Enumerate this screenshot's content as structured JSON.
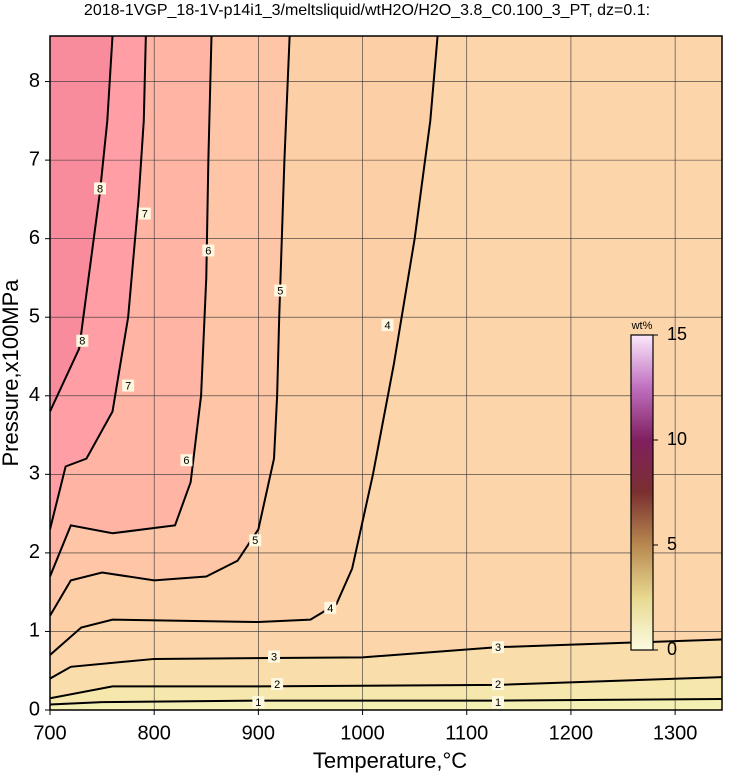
{
  "chart_data": {
    "type": "contour",
    "title": "2018-1VGP_18-1V-p14i1_3/meltsliquid/wtH2O/H2O_3.8_C0.100_3_PT, dz=0.1:",
    "xlabel": "Temperature,°C",
    "ylabel": "Pressure,x100MPa",
    "xlim": [
      700,
      1345
    ],
    "ylim": [
      0,
      8.58
    ],
    "xticks": [
      700,
      800,
      900,
      1000,
      1100,
      1200,
      1300
    ],
    "yticks": [
      0,
      1,
      2,
      3,
      4,
      5,
      6,
      7,
      8
    ],
    "grid": true,
    "base_color": "#f4f0b4",
    "contours": [
      {
        "level": 1,
        "fill": "#f6e7ac",
        "x": [
          700,
          750,
          900,
          1130,
          1350
        ],
        "y": [
          0.07,
          0.1,
          0.12,
          0.12,
          0.14
        ],
        "labels_at": [
          [
            900,
            0.1
          ],
          [
            1130,
            0.1
          ]
        ]
      },
      {
        "level": 2,
        "fill": "#f9ddaa",
        "x": [
          700,
          760,
          900,
          1130,
          1350
        ],
        "y": [
          0.15,
          0.3,
          0.3,
          0.32,
          0.42
        ],
        "labels_at": [
          [
            918,
            0.33
          ],
          [
            1130,
            0.33
          ]
        ]
      },
      {
        "level": 3,
        "fill": "#fcd5aa",
        "x": [
          700,
          720,
          800,
          1000,
          1130,
          1350
        ],
        "y": [
          0.4,
          0.55,
          0.65,
          0.67,
          0.8,
          0.9
        ],
        "labels_at": [
          [
            915,
            0.68
          ],
          [
            1130,
            0.8
          ]
        ]
      },
      {
        "level": 4,
        "fill": "#fdcfa6",
        "x": [
          700,
          730,
          760,
          900,
          950,
          975,
          990,
          1010,
          1030,
          1050,
          1065,
          1072
        ],
        "y": [
          0.7,
          1.05,
          1.15,
          1.12,
          1.15,
          1.35,
          1.8,
          3,
          4.4,
          6,
          7.5,
          8.58
        ],
        "labels_at": [
          [
            969,
            1.3
          ],
          [
            1024,
            4.9
          ]
        ]
      },
      {
        "level": 5,
        "fill": "#fec6a6",
        "x": [
          700,
          720,
          750,
          800,
          850,
          880,
          900,
          915,
          918,
          920,
          925,
          930
        ],
        "y": [
          1.2,
          1.65,
          1.75,
          1.65,
          1.7,
          1.9,
          2.3,
          3.2,
          4,
          5,
          7,
          8.58
        ],
        "labels_at": [
          [
            897,
            2.16
          ],
          [
            921,
            5.34
          ]
        ]
      },
      {
        "level": 6,
        "fill": "#ffb4a4",
        "x": [
          700,
          720,
          760,
          820,
          835,
          845,
          850,
          852,
          855
        ],
        "y": [
          1.7,
          2.35,
          2.25,
          2.35,
          2.9,
          4,
          5.5,
          7,
          8.58
        ],
        "labels_at": [
          [
            831,
            3.18
          ],
          [
            852,
            5.85
          ]
        ]
      },
      {
        "level": 7,
        "fill": "#ff9ea4",
        "x": [
          700,
          715,
          735,
          760,
          775,
          785,
          790,
          792
        ],
        "y": [
          2.3,
          3.1,
          3.2,
          3.8,
          5,
          6.5,
          7.5,
          8.58
        ],
        "labels_at": [
          [
            775,
            4.13
          ],
          [
            791,
            6.32
          ]
        ]
      },
      {
        "level": 8,
        "fill": "#f88c9c",
        "x": [
          700,
          728,
          740,
          748,
          755,
          760
        ],
        "y": [
          3.8,
          4.6,
          5.8,
          6.6,
          7.5,
          8.58
        ],
        "labels_at": [
          [
            731,
            4.7
          ],
          [
            748,
            6.64
          ]
        ]
      }
    ],
    "colorbar": {
      "label": "wt%",
      "lim": [
        0,
        15
      ],
      "ticks": [
        0,
        5,
        10,
        15
      ],
      "colors": [
        "#fbfbe0",
        "#e8d890",
        "#b88850",
        "#7a3030",
        "#802060",
        "#c070c0",
        "#fbe8fb"
      ]
    }
  }
}
